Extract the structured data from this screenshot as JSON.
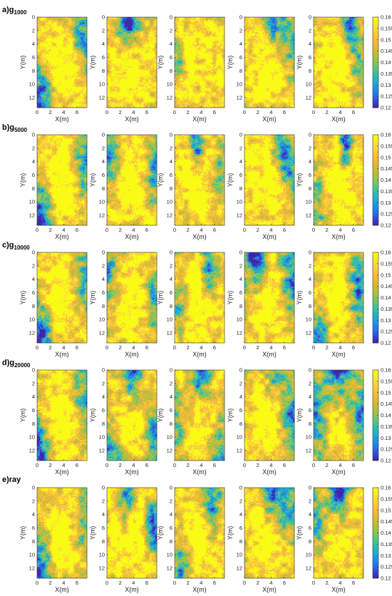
{
  "figure": {
    "rows": [
      {
        "label": "a)g",
        "sub": "1000"
      },
      {
        "label": "b)g",
        "sub": "5000"
      },
      {
        "label": "c)g",
        "sub": "10000"
      },
      {
        "label": "d)g",
        "sub": "20000"
      },
      {
        "label": "e)ray",
        "sub": ""
      }
    ]
  },
  "chart_data": {
    "type": "heatmap",
    "panels_per_row": 5,
    "rows": 5,
    "xlabel": "X(m)",
    "ylabel": "Y(m)",
    "xlim": [
      0,
      7.5
    ],
    "ylim": [
      0,
      13.5
    ],
    "y_reversed": true,
    "x_ticks": [
      "0",
      "2",
      "4",
      "6"
    ],
    "y_ticks": [
      "0",
      "2",
      "4",
      "6",
      "8",
      "10",
      "12"
    ],
    "colorbar": {
      "min": 0.12,
      "max": 0.16,
      "ticks": [
        "0.16",
        "0.155",
        "0.15",
        "0.145",
        "0.14",
        "0.135",
        "0.13",
        "0.125",
        "0.12"
      ],
      "colors": [
        "#3e26a8",
        "#2a6ee9",
        "#1ba4d8",
        "#38c0a3",
        "#8bc653",
        "#d3b830",
        "#f8ba3d",
        "#f7d83a",
        "#f9fb15"
      ]
    },
    "grid": false,
    "legend": "colorbar-right",
    "field_description_per_row": [
      [
        "yellow core, blue lower-left corner",
        "blue top-center",
        "mostly yellow, small blue patches",
        "blue top-right",
        "blue top-right spot"
      ],
      [
        "yellow core, blue lower-left corner",
        "blue left and right edges",
        "dark blue spot near top",
        "blue top-right",
        "dark blue spot near top-right"
      ],
      [
        "yellow core, blue lower-left corner",
        "blue edges",
        "blue near top-right",
        "dark blue top-left band",
        "blue right edge, lower-left blue"
      ],
      [
        "yellow core, blue lower-left corner",
        "blue top band",
        "blue edges",
        "blue right edge",
        "dark blue top band and edges"
      ],
      [
        "yellow core, blue lower-left corner",
        "dark blue right edge",
        "blue top-right",
        "blue top band",
        "blue top band"
      ]
    ]
  }
}
